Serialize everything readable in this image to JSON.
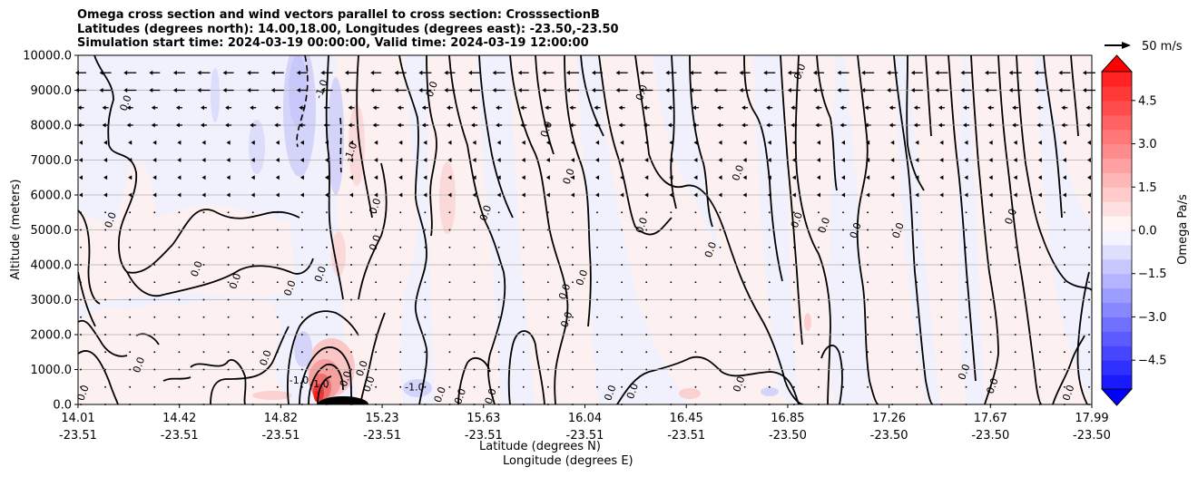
{
  "chart_data": {
    "type": "contour",
    "title_lines": [
      "Omega cross section and wind vectors parallel to cross section: CrosssectionB",
      "Latitudes (degrees north): 14.00,18.00, Longitudes (degrees east): -23.50,-23.50",
      "Simulation start time: 2024-03-19 00:00:00, Valid time: 2024-03-19 12:00:00"
    ],
    "ylabel": "Altitude (meters)",
    "xlabel_lat": "Latitude (degrees N)",
    "xlabel_lon": "Longitude (degrees E)",
    "ylim": [
      0,
      10000
    ],
    "y_ticks": [
      {
        "value": 0,
        "label": "0.0"
      },
      {
        "value": 1000,
        "label": "1000.0"
      },
      {
        "value": 2000,
        "label": "2000.0"
      },
      {
        "value": 3000,
        "label": "3000.0"
      },
      {
        "value": 4000,
        "label": "4000.0"
      },
      {
        "value": 5000,
        "label": "5000.0"
      },
      {
        "value": 6000,
        "label": "6000.0"
      },
      {
        "value": 7000,
        "label": "7000.0"
      },
      {
        "value": 8000,
        "label": "8000.0"
      },
      {
        "value": 9000,
        "label": "9000.0"
      },
      {
        "value": 10000,
        "label": "10000.0"
      }
    ],
    "x_ticks": [
      {
        "frac": 0.0,
        "lat": "14.01",
        "lon": "-23.51"
      },
      {
        "frac": 0.1,
        "lat": "14.42",
        "lon": "-23.51"
      },
      {
        "frac": 0.2,
        "lat": "14.82",
        "lon": "-23.51"
      },
      {
        "frac": 0.3,
        "lat": "15.23",
        "lon": "-23.51"
      },
      {
        "frac": 0.4,
        "lat": "15.63",
        "lon": "-23.51"
      },
      {
        "frac": 0.5,
        "lat": "16.04",
        "lon": "-23.51"
      },
      {
        "frac": 0.6,
        "lat": "16.45",
        "lon": "-23.51"
      },
      {
        "frac": 0.7,
        "lat": "16.85",
        "lon": "-23.50"
      },
      {
        "frac": 0.8,
        "lat": "17.26",
        "lon": "-23.50"
      },
      {
        "frac": 0.9,
        "lat": "17.67",
        "lon": "-23.50"
      },
      {
        "frac": 1.0,
        "lat": "17.99",
        "lon": "-23.50"
      }
    ],
    "grid": "horizontal",
    "colorbar": {
      "label": "Omega Pa/s",
      "range": [
        -5.5,
        5.5
      ],
      "extend": "both",
      "colormap": "bwr",
      "ticks": [
        -4.5,
        -3.0,
        -1.5,
        0.0,
        1.5,
        3.0,
        4.5
      ],
      "tick_labels": [
        "−4.5",
        "−3.0",
        "−1.5",
        "0.0",
        "1.5",
        "3.0",
        "4.5"
      ]
    },
    "contour_labels": [
      {
        "x": 0.05,
        "y": 8600,
        "text": "0.0"
      },
      {
        "x": 0.035,
        "y": 5250,
        "text": "0.0"
      },
      {
        "x": 0.12,
        "y": 3850,
        "text": "0.0"
      },
      {
        "x": 0.158,
        "y": 3500,
        "text": "0.0"
      },
      {
        "x": 0.212,
        "y": 3300,
        "text": "0.0"
      },
      {
        "x": 0.243,
        "y": 9000,
        "text": "-1.0"
      },
      {
        "x": 0.272,
        "y": 7200,
        "text": "-1.0"
      },
      {
        "x": 0.296,
        "y": 4600,
        "text": "0.0"
      },
      {
        "x": 0.242,
        "y": 3700,
        "text": "0.0"
      },
      {
        "x": 0.296,
        "y": 5650,
        "text": "0.0"
      },
      {
        "x": 0.352,
        "y": 9000,
        "text": "0.0"
      },
      {
        "x": 0.405,
        "y": 5450,
        "text": "0.0"
      },
      {
        "x": 0.465,
        "y": 7850,
        "text": "0.0"
      },
      {
        "x": 0.487,
        "y": 6500,
        "text": "0.0"
      },
      {
        "x": 0.559,
        "y": 8900,
        "text": "0.0"
      },
      {
        "x": 0.5,
        "y": 3600,
        "text": "0.0"
      },
      {
        "x": 0.483,
        "y": 3200,
        "text": "0.0"
      },
      {
        "x": 0.485,
        "y": 2400,
        "text": "0.0"
      },
      {
        "x": 0.559,
        "y": 5100,
        "text": "0.0"
      },
      {
        "x": 0.627,
        "y": 4400,
        "text": "0.0"
      },
      {
        "x": 0.654,
        "y": 6600,
        "text": "0.0"
      },
      {
        "x": 0.712,
        "y": 5250,
        "text": "0.0"
      },
      {
        "x": 0.739,
        "y": 5100,
        "text": "0.0"
      },
      {
        "x": 0.77,
        "y": 4950,
        "text": "0.0"
      },
      {
        "x": 0.812,
        "y": 4950,
        "text": "0.0"
      },
      {
        "x": 0.715,
        "y": 9500,
        "text": "0.0"
      },
      {
        "x": 0.923,
        "y": 5350,
        "text": "0.0"
      },
      {
        "x": 0.063,
        "y": 1100,
        "text": "0.0"
      },
      {
        "x": 0.188,
        "y": 1300,
        "text": "0.0"
      },
      {
        "x": 0.008,
        "y": 300,
        "text": "0.0"
      },
      {
        "x": 0.218,
        "y": 600,
        "text": "-1.0"
      },
      {
        "x": 0.238,
        "y": 500,
        "text": "-1.0"
      },
      {
        "x": 0.267,
        "y": 700,
        "text": "0.0"
      },
      {
        "x": 0.283,
        "y": 1000,
        "text": "0.0"
      },
      {
        "x": 0.29,
        "y": 550,
        "text": "0.0"
      },
      {
        "x": 0.332,
        "y": 400,
        "text": "-1.0"
      },
      {
        "x": 0.36,
        "y": 250,
        "text": "0.0"
      },
      {
        "x": 0.38,
        "y": 200,
        "text": "0.0"
      },
      {
        "x": 0.41,
        "y": 200,
        "text": "0.0"
      },
      {
        "x": 0.528,
        "y": 300,
        "text": "0.0"
      },
      {
        "x": 0.55,
        "y": 350,
        "text": "0.0"
      },
      {
        "x": 0.655,
        "y": 550,
        "text": "0.0"
      },
      {
        "x": 0.877,
        "y": 900,
        "text": "0.0"
      },
      {
        "x": 0.905,
        "y": 500,
        "text": "0.0"
      },
      {
        "x": 0.98,
        "y": 300,
        "text": "0.0"
      }
    ],
    "wind_key": {
      "label": "50 m/s",
      "speed": 50
    }
  }
}
